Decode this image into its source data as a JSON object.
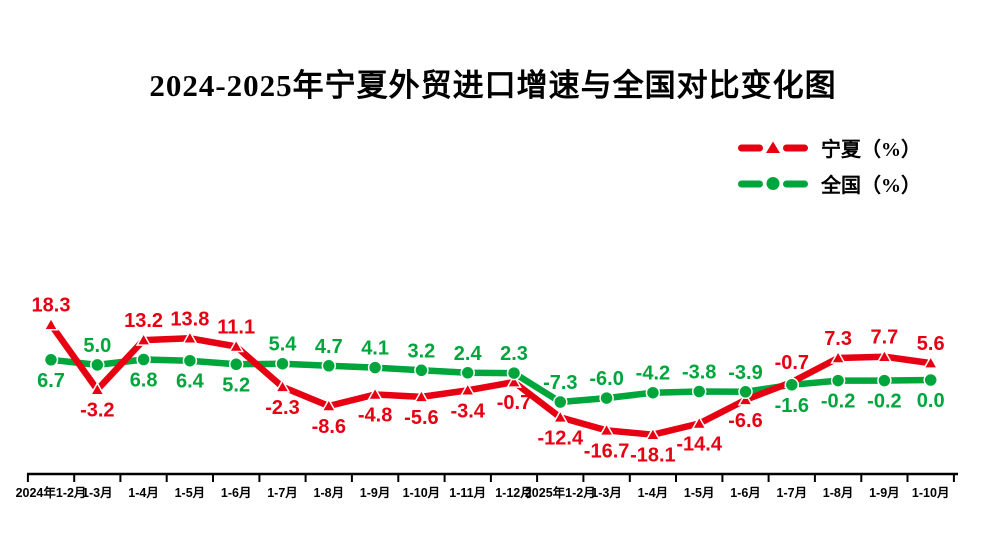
{
  "title": "2024-2025年宁夏外贸进口增速与全国对比变化图",
  "legend": {
    "items": [
      {
        "id": "ningxia",
        "label": "宁夏（%）",
        "color": "#e60012",
        "marker": "triangle"
      },
      {
        "id": "quanguo",
        "label": "全国（%）",
        "color": "#00a63c",
        "marker": "circle"
      }
    ]
  },
  "chart_data": {
    "type": "line",
    "title": "2024-2025年宁夏外贸进口增速与全国对比变化图",
    "xlabel": "",
    "ylabel": "",
    "ylim": [
      -20,
      20
    ],
    "grid": false,
    "legend_position": "top-right",
    "axis_color": "#000000",
    "categories": [
      "2024年1-2月",
      "1-3月",
      "1-4月",
      "1-5月",
      "1-6月",
      "1-7月",
      "1-8月",
      "1-9月",
      "1-10月",
      "1-11月",
      "1-12月",
      "2025年1-2月",
      "1-3月",
      "1-4月",
      "1-5月",
      "1-6月",
      "1-7月",
      "1-8月",
      "1-9月",
      "1-10月"
    ],
    "series": [
      {
        "id": "ningxia",
        "name": "宁夏（%）",
        "color": "#e60012",
        "marker": "triangle",
        "values": [
          18.3,
          -3.2,
          13.2,
          13.8,
          11.1,
          -2.3,
          -8.6,
          -4.8,
          -5.6,
          -3.4,
          -0.7,
          -12.4,
          -16.7,
          -18.1,
          -14.4,
          -6.6,
          -0.7,
          7.3,
          7.7,
          5.6
        ],
        "label_positions": [
          "above",
          "below",
          "above",
          "above",
          "above",
          "below",
          "below",
          "below",
          "below",
          "below",
          "below",
          "below",
          "below",
          "below",
          "below",
          "below",
          "above",
          "above",
          "above",
          "above"
        ]
      },
      {
        "id": "quanguo",
        "name": "全国（%）",
        "color": "#00a63c",
        "marker": "circle",
        "values": [
          6.7,
          5.0,
          6.8,
          6.4,
          5.2,
          5.4,
          4.7,
          4.1,
          3.2,
          2.4,
          2.3,
          -7.3,
          -6.0,
          -4.2,
          -3.8,
          -3.9,
          -1.6,
          -0.2,
          -0.2,
          0.0
        ],
        "label_positions": [
          "below",
          "above",
          "below",
          "below",
          "below",
          "above",
          "above",
          "above",
          "above",
          "above",
          "above",
          "above",
          "above",
          "above",
          "above",
          "above",
          "below",
          "below",
          "below",
          "below"
        ]
      }
    ]
  }
}
